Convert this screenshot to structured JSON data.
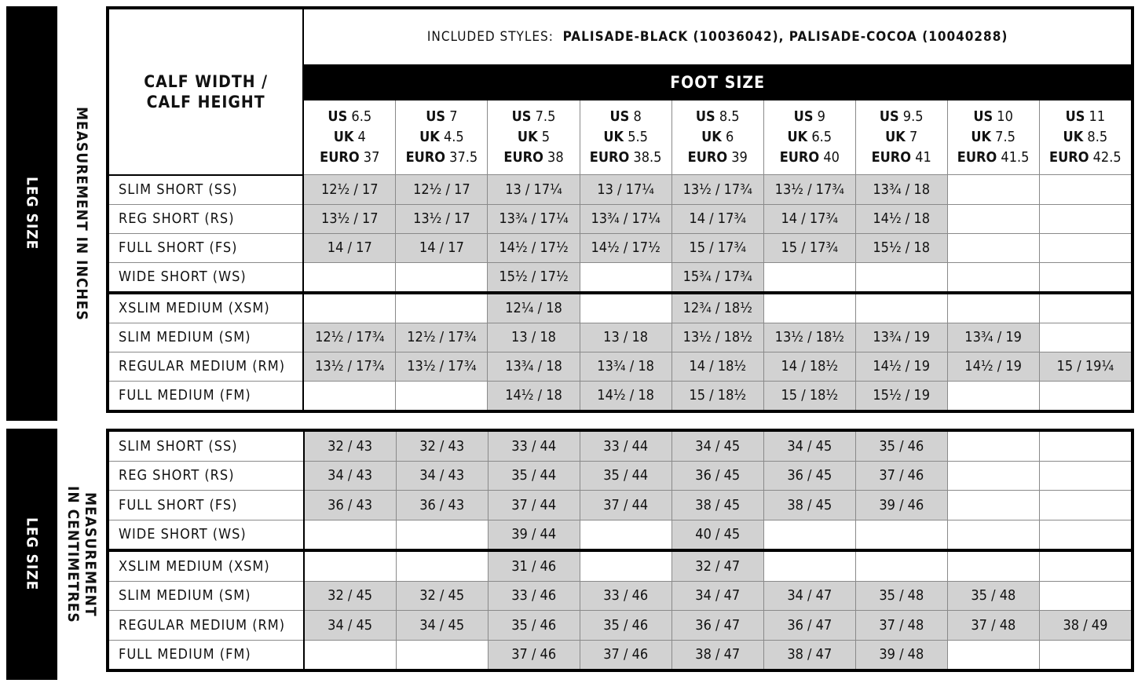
{
  "header": {
    "included_label": "INCLUDED STYLES:",
    "included_styles": "PALISADE-BLACK (10036042), PALISADE-COCOA (10040288)",
    "foot_size": "FOOT SIZE",
    "calf_line1": "CALF WIDTH /",
    "calf_line2": "CALF HEIGHT",
    "sizes": [
      {
        "us": "6.5",
        "uk": "4",
        "euro": "37"
      },
      {
        "us": "7",
        "uk": "4.5",
        "euro": "37.5"
      },
      {
        "us": "7.5",
        "uk": "5",
        "euro": "38"
      },
      {
        "us": "8",
        "uk": "5.5",
        "euro": "38.5"
      },
      {
        "us": "8.5",
        "uk": "6",
        "euro": "39"
      },
      {
        "us": "9",
        "uk": "6.5",
        "euro": "40"
      },
      {
        "us": "9.5",
        "uk": "7",
        "euro": "41"
      },
      {
        "us": "10",
        "uk": "7.5",
        "euro": "41.5"
      },
      {
        "us": "11",
        "uk": "8.5",
        "euro": "42.5"
      }
    ],
    "us": "US",
    "uk": "UK",
    "euro": "EURO"
  },
  "colors": {
    "shaded": "#d2d2d2",
    "side_bar": "#000000"
  },
  "inches": {
    "side_label": "LEG SIZE",
    "measurement_label": "MEASUREMENT IN INCHES",
    "rows": [
      {
        "label": "SLIM SHORT (SS)",
        "values": [
          "12½ / 17",
          "12½ / 17",
          "13 / 17¼",
          "13 / 17¼",
          "13½ / 17¾",
          "13½ / 17¾",
          "13¾ / 18",
          "",
          ""
        ]
      },
      {
        "label": "REG SHORT (RS)",
        "values": [
          "13½ / 17",
          "13½ / 17",
          "13¾ / 17¼",
          "13¾ / 17¼",
          "14 / 17¾",
          "14 / 17¾",
          "14½ / 18",
          "",
          ""
        ]
      },
      {
        "label": "FULL SHORT (FS)",
        "values": [
          "14 / 17",
          "14 / 17",
          "14½ / 17½",
          "14½ / 17½",
          "15 / 17¾",
          "15 / 17¾",
          "15½ / 18",
          "",
          ""
        ]
      },
      {
        "label": "WIDE SHORT (WS)",
        "values": [
          "",
          "",
          "15½ / 17½",
          "",
          "15¾ / 17¾",
          "",
          "",
          "",
          ""
        ]
      },
      {
        "label": "XSLIM MEDIUM (XSM)",
        "values": [
          "",
          "",
          "12¼ / 18",
          "",
          "12¾ / 18½",
          "",
          "",
          "",
          ""
        ]
      },
      {
        "label": "SLIM MEDIUM (SM)",
        "values": [
          "12½ / 17¾",
          "12½ / 17¾",
          "13 / 18",
          "13 / 18",
          "13½ / 18½",
          "13½ / 18½",
          "13¾ / 19",
          "13¾ / 19",
          ""
        ]
      },
      {
        "label": "REGULAR MEDIUM (RM)",
        "values": [
          "13½ / 17¾",
          "13½ / 17¾",
          "13¾ / 18",
          "13¾ / 18",
          "14 / 18½",
          "14 / 18½",
          "14½ / 19",
          "14½ / 19",
          "15 / 19¼"
        ]
      },
      {
        "label": "FULL MEDIUM (FM)",
        "values": [
          "",
          "",
          "14½ / 18",
          "14½ / 18",
          "15 / 18½",
          "15 / 18½",
          "15½ / 19",
          "",
          ""
        ]
      }
    ]
  },
  "cm": {
    "side_label": "LEG SIZE",
    "measurement_line1": "MEASUREMENT",
    "measurement_line2": "IN CENTIMETRES",
    "rows": [
      {
        "label": "SLIM SHORT (SS)",
        "values": [
          "32 / 43",
          "32 / 43",
          "33 / 44",
          "33 / 44",
          "34 / 45",
          "34 / 45",
          "35 / 46",
          "",
          ""
        ]
      },
      {
        "label": "REG SHORT (RS)",
        "values": [
          "34 / 43",
          "34 / 43",
          "35 / 44",
          "35 / 44",
          "36 / 45",
          "36 / 45",
          "37 / 46",
          "",
          ""
        ]
      },
      {
        "label": "FULL SHORT (FS)",
        "values": [
          "36 / 43",
          "36 / 43",
          "37 / 44",
          "37 / 44",
          "38 / 45",
          "38 / 45",
          "39 / 46",
          "",
          ""
        ]
      },
      {
        "label": "WIDE SHORT (WS)",
        "values": [
          "",
          "",
          "39 / 44",
          "",
          "40 / 45",
          "",
          "",
          "",
          ""
        ]
      },
      {
        "label": "XSLIM MEDIUM (XSM)",
        "values": [
          "",
          "",
          "31 / 46",
          "",
          "32 / 47",
          "",
          "",
          "",
          ""
        ]
      },
      {
        "label": "SLIM MEDIUM (SM)",
        "values": [
          "32 / 45",
          "32 / 45",
          "33 / 46",
          "33 / 46",
          "34 / 47",
          "34 / 47",
          "35 / 48",
          "35 / 48",
          ""
        ]
      },
      {
        "label": "REGULAR MEDIUM (RM)",
        "values": [
          "34 / 45",
          "34 / 45",
          "35 / 46",
          "35 / 46",
          "36 / 47",
          "36 / 47",
          "37 / 48",
          "37 / 48",
          "38 / 49"
        ]
      },
      {
        "label": "FULL MEDIUM (FM)",
        "values": [
          "",
          "",
          "37 / 46",
          "37 / 46",
          "38 / 47",
          "38 / 47",
          "39 / 48",
          "",
          ""
        ]
      }
    ]
  }
}
